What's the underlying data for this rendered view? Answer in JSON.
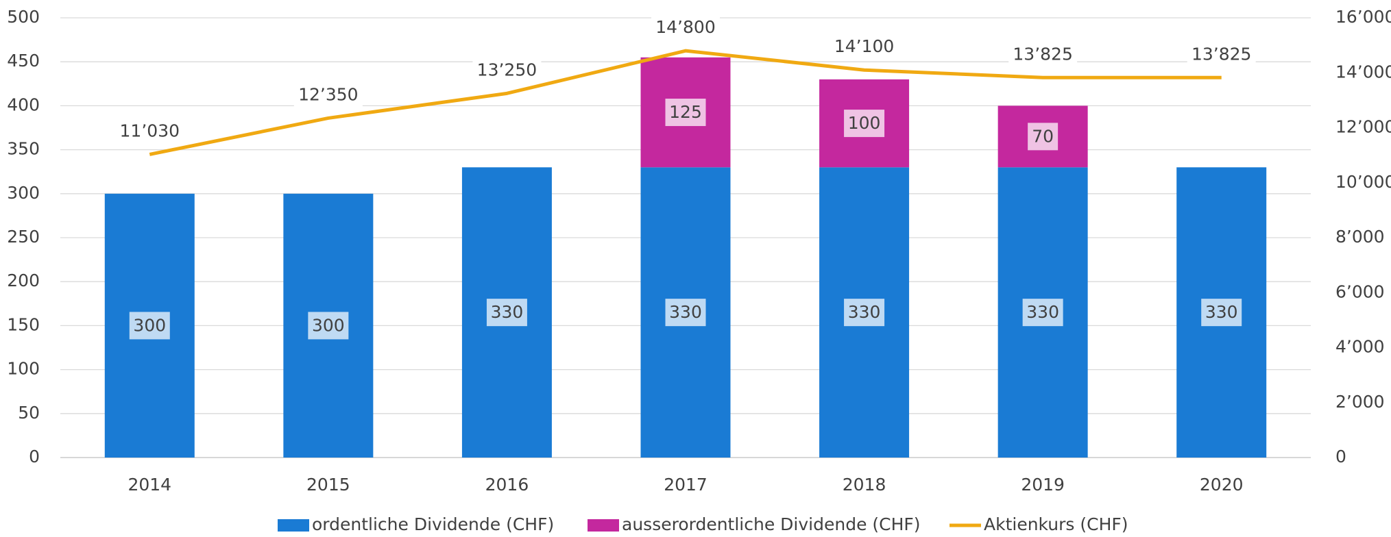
{
  "chart_data": {
    "type": "bar",
    "categories": [
      "2014",
      "2015",
      "2016",
      "2017",
      "2018",
      "2019",
      "2020"
    ],
    "stacked": true,
    "series": [
      {
        "name": "ordentliche Dividende (CHF)",
        "color": "#1a7bd4",
        "type": "bar",
        "values": [
          300,
          300,
          330,
          330,
          330,
          330,
          330
        ]
      },
      {
        "name": "ausserordentliche Dividende (CHF)",
        "color": "#c4289e",
        "type": "bar",
        "values": [
          null,
          null,
          null,
          125,
          100,
          70,
          null
        ]
      },
      {
        "name": "Aktienkurs (CHF)",
        "color": "#f0a912",
        "type": "line",
        "axis": "y2",
        "values": [
          11030,
          12350,
          13250,
          14800,
          14100,
          13825,
          13825
        ],
        "value_labels": [
          "11’030",
          "12’350",
          "13’250",
          "14’800",
          "14’100",
          "13’825",
          "13’825"
        ]
      }
    ],
    "ylim": [
      0,
      500
    ],
    "yticks": [
      0,
      50,
      100,
      150,
      200,
      250,
      300,
      350,
      400,
      450,
      500
    ],
    "y2lim": [
      0,
      16000
    ],
    "y2ticks": [
      0,
      {
        "value": 2000,
        "label": "2’000"
      },
      {
        "value": 4000,
        "label": "4’000"
      },
      {
        "value": 6000,
        "label": "6’000"
      },
      {
        "value": 8000,
        "label": "8’000"
      },
      {
        "value": 10000,
        "label": "10’000"
      },
      {
        "value": 12000,
        "label": "12’000"
      },
      {
        "value": 14000,
        "label": "14’000"
      },
      {
        "value": 16000,
        "label": "16’000"
      }
    ],
    "grid": true,
    "legend": "bottom"
  }
}
